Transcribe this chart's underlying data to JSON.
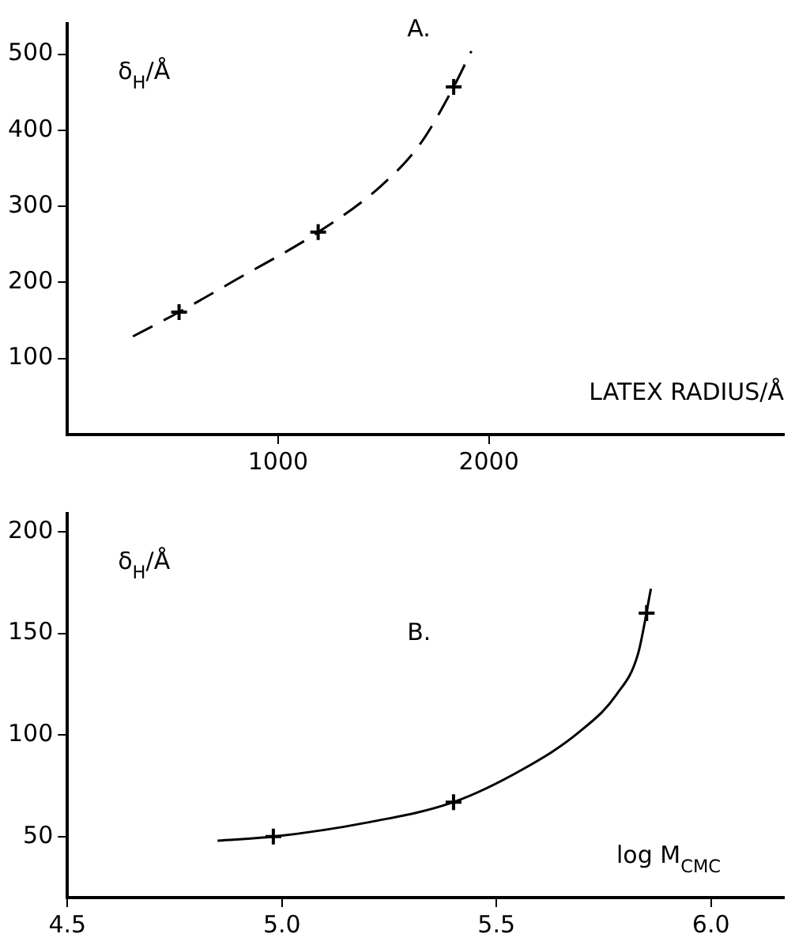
{
  "chart_data": [
    {
      "type": "line",
      "title": "A.",
      "xlabel": "LATEX RADIUS/Å",
      "ylabel": "δ$_{H}$/Å",
      "xlim": [
        0,
        3400
      ],
      "xticks": [
        1000,
        2000
      ],
      "ylim": [
        0,
        540
      ],
      "yticks": [
        100,
        200,
        300,
        400,
        500
      ],
      "grid": false,
      "legend": false,
      "series": [
        {
          "color": "#000000",
          "line_style": "dashed",
          "marker": "none",
          "x": [
            311,
            530,
            803,
            1190,
            1485,
            1674,
            1833,
            1917
          ],
          "values": [
            129,
            161,
            204,
            266,
            326,
            382,
            457,
            504
          ]
        },
        {
          "type": "scatter",
          "color": "#000000",
          "marker": "cross",
          "x": [
            530,
            1190,
            1833
          ],
          "values": [
            161,
            266,
            457
          ]
        }
      ]
    },
    {
      "type": "line",
      "title": "B.",
      "xlabel": "log M$_{CMC}$",
      "ylabel": "δ$_{H}$/Å",
      "xlim": [
        4.5,
        6.17
      ],
      "xticks": [
        4.5,
        {
          "value": 5,
          "label": "5.0"
        },
        5.5,
        {
          "value": 6,
          "label": "6.0"
        }
      ],
      "ylim": [
        20,
        209
      ],
      "yticks": [
        50,
        100,
        150,
        200
      ],
      "grid": false,
      "legend": false,
      "series": [
        {
          "color": "#000000",
          "line_style": "solid",
          "marker": "none",
          "x": [
            4.85,
            4.98,
            5.2,
            5.4,
            5.56,
            5.69,
            5.78,
            5.83,
            5.86
          ],
          "values": [
            48,
            50,
            57,
            67,
            83,
            101,
            120,
            140,
            172
          ]
        },
        {
          "type": "scatter",
          "color": "#000000",
          "marker": "cross",
          "x": [
            4.98,
            5.4,
            5.85
          ],
          "values": [
            50,
            67,
            160
          ]
        }
      ]
    }
  ]
}
